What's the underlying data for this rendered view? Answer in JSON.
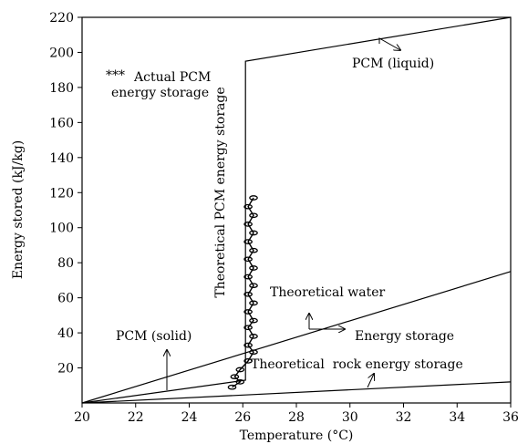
{
  "chart_data": {
    "type": "line",
    "title": "",
    "xlabel": "Temperature (°C)",
    "ylabel": "Energy stored (kJ/kg)",
    "xlim": [
      20,
      36
    ],
    "ylim": [
      0,
      220
    ],
    "x_ticks": [
      "20",
      "22",
      "24",
      "26",
      "28",
      "30",
      "32",
      "34",
      "36"
    ],
    "y_ticks": [
      "20",
      "40",
      "60",
      "80",
      "100",
      "120",
      "140",
      "160",
      "180",
      "200",
      "220"
    ],
    "grid": false,
    "legend": "none",
    "series": [
      {
        "points": [
          [
            20,
            0
          ],
          [
            26.1,
            13
          ],
          [
            26.1,
            195
          ],
          [
            36,
            220
          ]
        ]
      },
      {
        "points": [
          [
            20,
            0
          ],
          [
            36,
            75
          ]
        ]
      },
      {
        "points": [
          [
            20,
            0
          ],
          [
            36,
            12
          ]
        ]
      },
      {
        "points": [
          [
            25.6,
            9
          ],
          [
            25.9,
            12
          ],
          [
            25.7,
            15
          ],
          [
            25.9,
            19
          ],
          [
            26.2,
            24
          ],
          [
            26.4,
            29
          ],
          [
            26.2,
            33
          ],
          [
            26.4,
            38
          ],
          [
            26.2,
            43
          ],
          [
            26.4,
            47
          ],
          [
            26.2,
            52
          ],
          [
            26.4,
            57
          ],
          [
            26.2,
            62
          ],
          [
            26.4,
            67
          ],
          [
            26.2,
            72
          ],
          [
            26.4,
            77
          ],
          [
            26.2,
            82
          ],
          [
            26.4,
            87
          ],
          [
            26.2,
            92
          ],
          [
            26.4,
            97
          ],
          [
            26.2,
            102
          ],
          [
            26.4,
            107
          ],
          [
            26.2,
            112
          ],
          [
            26.4,
            117
          ]
        ]
      }
    ],
    "annotations": {
      "actual_marker": "***",
      "actual_line1": "Actual PCM",
      "actual_line2": "energy storage",
      "theoretical_pcm": "Theoretical PCM energy storage",
      "pcm_liquid": "PCM (liquid)",
      "pcm_solid": "PCM (solid)",
      "water": "Theoretical water",
      "energy_storage": "Energy storage",
      "rock": "Theoretical  rock energy storage"
    }
  }
}
